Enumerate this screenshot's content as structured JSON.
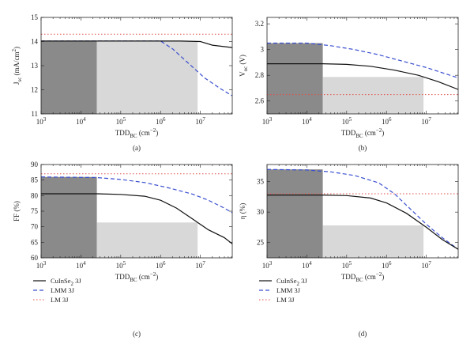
{
  "panels": [
    {
      "id": "a",
      "caption": "(a)",
      "ylabel": "J_sc (mA/cm^2)",
      "ylim": [
        11,
        15
      ],
      "yticks": [
        11,
        12,
        13,
        14,
        15
      ],
      "ytick_labels": [
        "11",
        "12",
        "13",
        "14",
        "15"
      ]
    },
    {
      "id": "b",
      "caption": "(b)",
      "ylabel": "V_oc (V)",
      "ylim": [
        2.5,
        3.25
      ],
      "yticks": [
        2.6,
        2.8,
        3.0,
        3.2
      ],
      "ytick_labels": [
        "2.6",
        "2.8",
        "3",
        "3.2"
      ]
    },
    {
      "id": "c",
      "caption": "(c)",
      "ylabel": "FF (%)",
      "ylim": [
        60,
        90
      ],
      "yticks": [
        60,
        65,
        70,
        75,
        80,
        85,
        90
      ],
      "ytick_labels": [
        "60",
        "65",
        "70",
        "75",
        "80",
        "85",
        "90"
      ]
    },
    {
      "id": "d",
      "caption": "(d)",
      "ylabel": "η (%)",
      "ylim": [
        22.5,
        37.8
      ],
      "yticks": [
        25,
        30,
        35
      ],
      "ytick_labels": [
        "25",
        "30",
        "35"
      ]
    }
  ],
  "xaxis": {
    "label": "TDD_BC (cm^−2)",
    "scale": "log",
    "xlim_log10": [
      3,
      7.8
    ],
    "ticks_log10": [
      3,
      4,
      5,
      6,
      7
    ],
    "tick_labels": [
      "10^3",
      "10^4",
      "10^5",
      "10^6",
      "10^7"
    ]
  },
  "legend": [
    {
      "label": "CuInSe2 3J",
      "key": "cuinse"
    },
    {
      "label": "LMM 3J",
      "key": "lmm"
    },
    {
      "label": "LM 3J",
      "key": "lm"
    }
  ],
  "colors": {
    "cuinse": "#111111",
    "lmm": "#3a4fd0",
    "lm": "#e0504a",
    "dark_region": "#8a8a8a",
    "light_region": "#d8d8d8"
  },
  "chart_data": {
    "type": "line",
    "x_unit": "TDD_BC (cm^-2), log10 scale",
    "regions": [
      {
        "name": "dark",
        "x_log10": [
          3,
          4.4
        ]
      },
      {
        "name": "light",
        "x_log10": [
          4.4,
          6.93
        ]
      }
    ],
    "panels": {
      "a": {
        "cuinse": [
          [
            3,
            14.02
          ],
          [
            6.5,
            14.02
          ],
          [
            7.0,
            14.0
          ],
          [
            7.3,
            13.85
          ],
          [
            7.8,
            13.75
          ]
        ],
        "lmm": [
          [
            3,
            14.02
          ],
          [
            6.0,
            14.02
          ],
          [
            6.3,
            13.7
          ],
          [
            6.7,
            13.1
          ],
          [
            7.1,
            12.5
          ],
          [
            7.5,
            12.05
          ],
          [
            7.8,
            11.75
          ]
        ],
        "lm": [
          [
            3,
            14.3
          ],
          [
            7.8,
            14.3
          ]
        ]
      },
      "b": {
        "cuinse": [
          [
            3,
            2.89
          ],
          [
            4.4,
            2.89
          ],
          [
            5.0,
            2.885
          ],
          [
            5.6,
            2.87
          ],
          [
            6.2,
            2.84
          ],
          [
            6.8,
            2.8
          ],
          [
            7.3,
            2.75
          ],
          [
            7.8,
            2.69
          ]
        ],
        "lmm": [
          [
            3,
            3.05
          ],
          [
            4.0,
            3.05
          ],
          [
            4.6,
            3.03
          ],
          [
            5.2,
            3.0
          ],
          [
            5.8,
            2.96
          ],
          [
            6.4,
            2.91
          ],
          [
            7.0,
            2.86
          ],
          [
            7.5,
            2.81
          ],
          [
            7.8,
            2.78
          ]
        ],
        "lm": [
          [
            3,
            2.65
          ],
          [
            7.8,
            2.65
          ]
        ]
      },
      "c": {
        "cuinse": [
          [
            3,
            80.6
          ],
          [
            4.4,
            80.6
          ],
          [
            5.0,
            80.4
          ],
          [
            5.6,
            79.8
          ],
          [
            6.0,
            78.5
          ],
          [
            6.4,
            76.0
          ],
          [
            6.8,
            72.5
          ],
          [
            7.2,
            69.0
          ],
          [
            7.6,
            66.5
          ],
          [
            7.8,
            64.5
          ]
        ],
        "lmm": [
          [
            3,
            86.0
          ],
          [
            4.4,
            85.8
          ],
          [
            5.0,
            85.2
          ],
          [
            5.6,
            84.2
          ],
          [
            6.2,
            82.5
          ],
          [
            6.8,
            80.5
          ],
          [
            7.2,
            78.5
          ],
          [
            7.6,
            76.0
          ],
          [
            7.8,
            74.5
          ]
        ],
        "lm": [
          [
            3,
            87.0
          ],
          [
            7.8,
            87.0
          ]
        ]
      },
      "d": {
        "cuinse": [
          [
            3,
            32.8
          ],
          [
            4.4,
            32.8
          ],
          [
            5.0,
            32.7
          ],
          [
            5.6,
            32.3
          ],
          [
            6.0,
            31.5
          ],
          [
            6.5,
            29.8
          ],
          [
            7.0,
            27.5
          ],
          [
            7.4,
            25.5
          ],
          [
            7.8,
            23.9
          ]
        ],
        "lmm": [
          [
            3,
            37.0
          ],
          [
            4.0,
            36.9
          ],
          [
            4.6,
            36.6
          ],
          [
            5.2,
            36.0
          ],
          [
            5.8,
            34.8
          ],
          [
            6.2,
            33.0
          ],
          [
            6.6,
            30.5
          ],
          [
            7.0,
            28.0
          ],
          [
            7.4,
            25.8
          ],
          [
            7.8,
            23.9
          ]
        ],
        "lm": [
          [
            3,
            33.0
          ],
          [
            7.8,
            33.0
          ]
        ]
      }
    }
  }
}
